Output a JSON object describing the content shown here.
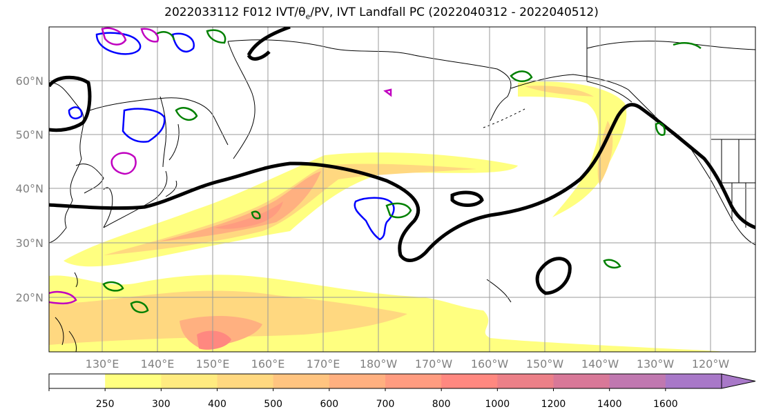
{
  "title": "2022033112 F012 IVT/θe/PV, IVT Landfall PC (2022040312 - 2022040512)",
  "lat_labels": [
    "60°N",
    "50°N",
    "40°N",
    "30°N",
    "20°N"
  ],
  "lon_labels": [
    "130°E",
    "140°E",
    "150°E",
    "160°E",
    "170°E",
    "180°W",
    "170°W",
    "160°W",
    "150°W",
    "140°W",
    "130°W",
    "120°W"
  ],
  "colorbar": {
    "ticks": [
      "250",
      "300",
      "400",
      "500",
      "600",
      "700",
      "800",
      "1000",
      "1200",
      "1400",
      "1600"
    ],
    "colors": [
      "#ffffff",
      "#ffff80",
      "#ffeb80",
      "#ffd880",
      "#ffc480",
      "#ffb080",
      "#ff9c80",
      "#ff8880",
      "#ec8088",
      "#d87898",
      "#c078b0",
      "#a878c8"
    ]
  },
  "colors": {
    "contour_black": "#000000",
    "contour_blue": "#0000ff",
    "contour_green": "#008000",
    "contour_magenta": "#c000c0",
    "coast": "#000000"
  }
}
